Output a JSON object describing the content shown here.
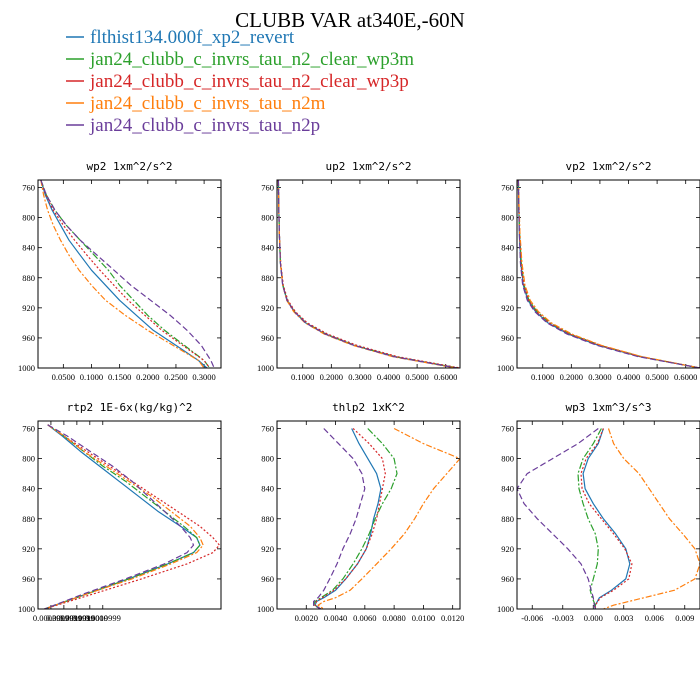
{
  "figure_title": "CLUBB VAR at340E,-60N",
  "legend": [
    {
      "name": "flthist134.000f_xp2_revert",
      "color": "#1f77b4",
      "dash": ""
    },
    {
      "name": "jan24_clubb_c_invrs_tau_n2_clear_wp3m",
      "color": "#2ca02c",
      "dash": "7 2 2 2"
    },
    {
      "name": "jan24_clubb_c_invrs_tau_n2_clear_wp3p",
      "color": "#d62728",
      "dash": "2 2"
    },
    {
      "name": "jan24_clubb_c_invrs_tau_n2m",
      "color": "#ff7f0e",
      "dash": "6 2 2 2"
    },
    {
      "name": "jan24_clubb_c_invrs_tau_n2p",
      "color": "#6a3d9a",
      "dash": "6 3"
    }
  ],
  "chart_data": [
    {
      "type": "line",
      "title": "wp2  1xm^2/s^2",
      "xlim": [
        0.005,
        0.33
      ],
      "ylim": [
        750,
        1000
      ],
      "y_inverted": true,
      "yticks": [
        "760",
        "800",
        "840",
        "880",
        "920",
        "960",
        "1000"
      ],
      "xticks": [
        "0.0500",
        "0.1000",
        "0.1500",
        "0.2000",
        "0.2500",
        "0.3000"
      ],
      "xtick_values": [
        0.05,
        0.1,
        0.15,
        0.2,
        0.25,
        0.3
      ],
      "y": [
        750,
        770,
        790,
        810,
        830,
        850,
        870,
        890,
        910,
        930,
        950,
        970,
        990,
        1000
      ],
      "series": [
        {
          "x": [
            0.01,
            0.018,
            0.03,
            0.045,
            0.06,
            0.08,
            0.1,
            0.125,
            0.15,
            0.18,
            0.21,
            0.25,
            0.29,
            0.305
          ]
        },
        {
          "x": [
            0.01,
            0.02,
            0.035,
            0.055,
            0.08,
            0.105,
            0.13,
            0.15,
            0.175,
            0.2,
            0.23,
            0.265,
            0.3,
            0.31
          ]
        },
        {
          "x": [
            0.01,
            0.019,
            0.032,
            0.05,
            0.07,
            0.092,
            0.115,
            0.14,
            0.165,
            0.195,
            0.225,
            0.262,
            0.3,
            0.31
          ]
        },
        {
          "x": [
            0.01,
            0.015,
            0.022,
            0.032,
            0.045,
            0.06,
            0.078,
            0.1,
            0.125,
            0.16,
            0.2,
            0.245,
            0.29,
            0.3
          ]
        },
        {
          "x": [
            0.01,
            0.02,
            0.035,
            0.055,
            0.08,
            0.11,
            0.14,
            0.17,
            0.205,
            0.24,
            0.27,
            0.295,
            0.312,
            0.318
          ]
        }
      ]
    },
    {
      "type": "line",
      "title": "up2  1xm^2/s^2",
      "xlim": [
        0.01,
        0.65
      ],
      "ylim": [
        750,
        1000
      ],
      "y_inverted": true,
      "yticks": [
        "760",
        "800",
        "840",
        "880",
        "920",
        "960",
        "1000"
      ],
      "xticks": [
        "0.1000",
        "0.2000",
        "0.3000",
        "0.4000",
        "0.5000",
        "0.6000"
      ],
      "xtick_values": [
        0.1,
        0.2,
        0.3,
        0.4,
        0.5,
        0.6
      ],
      "y": [
        750,
        780,
        820,
        860,
        890,
        910,
        925,
        940,
        955,
        970,
        985,
        1000
      ],
      "series": [
        {
          "x": [
            0.015,
            0.016,
            0.018,
            0.022,
            0.03,
            0.045,
            0.07,
            0.11,
            0.18,
            0.28,
            0.42,
            0.64
          ]
        },
        {
          "x": [
            0.015,
            0.016,
            0.018,
            0.022,
            0.031,
            0.046,
            0.071,
            0.112,
            0.182,
            0.283,
            0.425,
            0.645
          ]
        },
        {
          "x": [
            0.015,
            0.016,
            0.018,
            0.023,
            0.032,
            0.048,
            0.074,
            0.116,
            0.188,
            0.29,
            0.432,
            0.65
          ]
        },
        {
          "x": [
            0.015,
            0.016,
            0.018,
            0.022,
            0.03,
            0.044,
            0.068,
            0.108,
            0.176,
            0.276,
            0.415,
            0.635
          ]
        },
        {
          "x": [
            0.015,
            0.016,
            0.018,
            0.022,
            0.03,
            0.045,
            0.07,
            0.11,
            0.18,
            0.28,
            0.42,
            0.64
          ]
        }
      ]
    },
    {
      "type": "line",
      "title": "vp2  1xm^2/s^2",
      "xlim": [
        0.01,
        0.65
      ],
      "ylim": [
        750,
        1000
      ],
      "y_inverted": true,
      "yticks": [
        "760",
        "800",
        "840",
        "880",
        "920",
        "960",
        "1000"
      ],
      "xticks": [
        "0.1000",
        "0.2000",
        "0.3000",
        "0.4000",
        "0.5000",
        "0.6000"
      ],
      "xtick_values": [
        0.1,
        0.2,
        0.3,
        0.4,
        0.5,
        0.6
      ],
      "y": [
        750,
        780,
        820,
        860,
        890,
        910,
        925,
        940,
        955,
        970,
        985,
        1000
      ],
      "series": [
        {
          "x": [
            0.015,
            0.016,
            0.018,
            0.023,
            0.032,
            0.048,
            0.075,
            0.118,
            0.19,
            0.295,
            0.44,
            0.65
          ]
        },
        {
          "x": [
            0.015,
            0.016,
            0.019,
            0.025,
            0.035,
            0.052,
            0.08,
            0.125,
            0.198,
            0.302,
            0.445,
            0.65
          ]
        },
        {
          "x": [
            0.015,
            0.016,
            0.019,
            0.024,
            0.034,
            0.051,
            0.078,
            0.122,
            0.195,
            0.3,
            0.443,
            0.65
          ]
        },
        {
          "x": [
            0.015,
            0.017,
            0.02,
            0.027,
            0.038,
            0.056,
            0.085,
            0.13,
            0.203,
            0.306,
            0.448,
            0.65
          ]
        },
        {
          "x": [
            0.015,
            0.016,
            0.018,
            0.022,
            0.03,
            0.046,
            0.072,
            0.115,
            0.186,
            0.29,
            0.435,
            0.65
          ]
        }
      ]
    },
    {
      "type": "line",
      "title": "rtp2  1E-6x(kg/kg)^2",
      "xlim": [
        0,
        5.65e-06
      ],
      "ylim": [
        750,
        1000
      ],
      "y_inverted": true,
      "yticks": [
        "760",
        "800",
        "840",
        "880",
        "920",
        "960",
        "1000"
      ],
      "xticks": [
        "0.0003999",
        "0.0007999",
        "0.0011999",
        "0.0016000",
        "0.0019999"
      ],
      "xtick_values": [
        3.99e-07,
        7.99e-07,
        1.2e-06,
        1.6e-06,
        2e-06
      ],
      "y": [
        755,
        770,
        790,
        810,
        830,
        850,
        870,
        890,
        905,
        915,
        925,
        940,
        960,
        980,
        1000
      ],
      "series": [
        {
          "x": [
            3e-07,
            7.5e-07,
            1.3e-06,
            1.9e-06,
            2.5e-06,
            3.1e-06,
            3.7e-06,
            4.4e-06,
            4.9e-06,
            5e-06,
            4.8e-06,
            4e-06,
            2.8e-06,
            1.5e-06,
            2e-07
          ]
        },
        {
          "x": [
            3e-07,
            8e-07,
            1.4e-06,
            2e-06,
            2.7e-06,
            3.3e-06,
            3.9e-06,
            4.5e-06,
            4.9e-06,
            5e-06,
            4.8e-06,
            4e-06,
            2.8e-06,
            1.5e-06,
            2e-07
          ]
        },
        {
          "x": [
            3e-07,
            8e-07,
            1.5e-06,
            2.2e-06,
            2.9e-06,
            3.6e-06,
            4.3e-06,
            5e-06,
            5.4e-06,
            5.6e-06,
            5.4e-06,
            4.6e-06,
            3.2e-06,
            1.7e-06,
            2e-07
          ]
        },
        {
          "x": [
            3e-07,
            8e-07,
            1.4e-06,
            2.1e-06,
            2.8e-06,
            3.5e-06,
            4.1e-06,
            4.7e-06,
            5e-06,
            5.1e-06,
            4.9e-06,
            4.1e-06,
            2.9e-06,
            1.5e-06,
            2e-07
          ]
        },
        {
          "x": [
            3e-07,
            9e-07,
            1.6e-06,
            2.3e-06,
            2.9e-06,
            3.4e-06,
            3.9e-06,
            4.4e-06,
            4.7e-06,
            4.8e-06,
            4.6e-06,
            3.9e-06,
            2.7e-06,
            1.4e-06,
            2e-07
          ]
        }
      ]
    },
    {
      "type": "line",
      "title": "thlp2  1xK^2",
      "xlim": [
        0,
        0.0125
      ],
      "ylim": [
        750,
        1000
      ],
      "y_inverted": true,
      "yticks": [
        "760",
        "800",
        "840",
        "880",
        "920",
        "960",
        "1000"
      ],
      "xticks": [
        "0.0020",
        "0.0040",
        "0.0060",
        "0.0080",
        "0.0100",
        "0.0120"
      ],
      "xtick_values": [
        0.002,
        0.004,
        0.006,
        0.008,
        0.01,
        0.012
      ],
      "y": [
        760,
        780,
        800,
        820,
        840,
        860,
        880,
        900,
        920,
        940,
        960,
        975,
        985,
        990,
        995,
        1000
      ],
      "series": [
        {
          "x": [
            0.0051,
            0.0056,
            0.0062,
            0.0068,
            0.0071,
            0.0069,
            0.0066,
            0.0064,
            0.0061,
            0.0055,
            0.0047,
            0.004,
            0.0032,
            0.0027,
            0.0026,
            0.003
          ]
        },
        {
          "x": [
            0.0062,
            0.0072,
            0.008,
            0.0082,
            0.0078,
            0.0072,
            0.0067,
            0.0063,
            0.0058,
            0.0052,
            0.0045,
            0.0038,
            0.003,
            0.0026,
            0.0025,
            0.003
          ]
        },
        {
          "x": [
            0.0052,
            0.0063,
            0.0072,
            0.0074,
            0.0072,
            0.007,
            0.0068,
            0.0065,
            0.0061,
            0.0055,
            0.0047,
            0.0039,
            0.0031,
            0.0027,
            0.0026,
            0.003
          ]
        },
        {
          "x": [
            0.008,
            0.01,
            0.0125,
            0.0116,
            0.0107,
            0.01,
            0.0094,
            0.0087,
            0.0078,
            0.0068,
            0.0058,
            0.005,
            0.004,
            0.0032,
            0.0028,
            0.0032
          ]
        },
        {
          "x": [
            0.0032,
            0.0042,
            0.0052,
            0.0058,
            0.006,
            0.0057,
            0.0054,
            0.005,
            0.0045,
            0.0041,
            0.0036,
            0.0032,
            0.0028,
            0.0025,
            0.0025,
            0.003
          ]
        }
      ]
    },
    {
      "type": "line",
      "title": "wp3  1xm^3/s^3",
      "xlim": [
        -0.0075,
        0.0105
      ],
      "ylim": [
        750,
        1000
      ],
      "y_inverted": true,
      "yticks": [
        "760",
        "800",
        "840",
        "880",
        "920",
        "960",
        "1000"
      ],
      "xticks": [
        "-0.006",
        "-0.003",
        "0.000",
        "0.003",
        "0.006",
        "0.009"
      ],
      "xtick_values": [
        -0.006,
        -0.003,
        0.0,
        0.003,
        0.006,
        0.009
      ],
      "y": [
        760,
        780,
        800,
        820,
        840,
        860,
        880,
        900,
        920,
        940,
        960,
        975,
        985,
        995,
        1000
      ],
      "series": [
        {
          "x": [
            0.001,
            0.0005,
            -0.0005,
            -0.001,
            -0.0008,
            0.0,
            0.001,
            0.0022,
            0.0032,
            0.0036,
            0.0032,
            0.0018,
            0.0006,
            0.0002,
            0.0002
          ]
        },
        {
          "x": [
            0.0008,
            0.0,
            -0.001,
            -0.0015,
            -0.0014,
            -0.001,
            -0.0005,
            0.0002,
            0.0005,
            0.0004,
            0.0,
            -0.0003,
            -0.0001,
            0.0002,
            0.0002
          ]
        },
        {
          "x": [
            0.001,
            0.0004,
            -0.0007,
            -0.0012,
            -0.0011,
            -0.0004,
            0.0008,
            0.002,
            0.0031,
            0.0038,
            0.0035,
            0.002,
            0.0007,
            0.0002,
            0.0002
          ]
        },
        {
          "x": [
            0.0015,
            0.002,
            0.003,
            0.0045,
            0.0055,
            0.0065,
            0.0075,
            0.0088,
            0.01,
            0.0105,
            0.01,
            0.008,
            0.005,
            0.002,
            0.001
          ]
        },
        {
          "x": [
            0.0005,
            -0.0015,
            -0.004,
            -0.0065,
            -0.0075,
            -0.0068,
            -0.0055,
            -0.004,
            -0.0025,
            -0.0012,
            -0.0005,
            -0.0002,
            0.0,
            0.0001,
            0.0002
          ]
        }
      ]
    }
  ]
}
